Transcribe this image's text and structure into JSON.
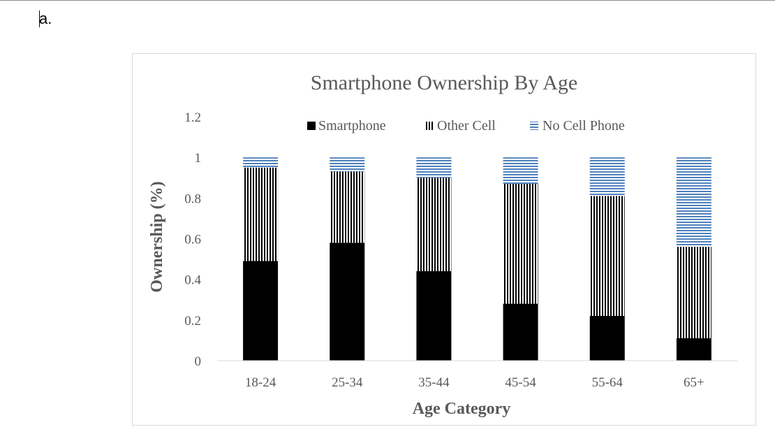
{
  "document": {
    "label": "a."
  },
  "chart_data": {
    "type": "bar",
    "stacked": true,
    "title": "Smartphone Ownership By Age",
    "xlabel": "Age Category",
    "ylabel": "Ownership (%)",
    "ylim": [
      0,
      1.2
    ],
    "yticks": [
      "0",
      "0.2",
      "0.4",
      "0.6",
      "0.8",
      "1",
      "1.2"
    ],
    "ytick_values": [
      0,
      0.2,
      0.4,
      0.6,
      0.8,
      1,
      1.2
    ],
    "categories": [
      "18-24",
      "25-34",
      "35-44",
      "45-54",
      "55-64",
      "65+"
    ],
    "series": [
      {
        "name": "Smartphone",
        "values": [
          0.49,
          0.58,
          0.44,
          0.28,
          0.22,
          0.11
        ]
      },
      {
        "name": "Other Cell",
        "values": [
          0.46,
          0.35,
          0.46,
          0.59,
          0.59,
          0.45
        ]
      },
      {
        "name": "No Cell Phone",
        "values": [
          0.05,
          0.07,
          0.1,
          0.13,
          0.19,
          0.44
        ]
      }
    ],
    "colors": {
      "smartphone": "#000000",
      "other_cell": "#000000",
      "no_cell": "#4f81bd",
      "axis": "#d9d9d9",
      "text": "#595959"
    },
    "legend_position": "top",
    "grid": false
  }
}
